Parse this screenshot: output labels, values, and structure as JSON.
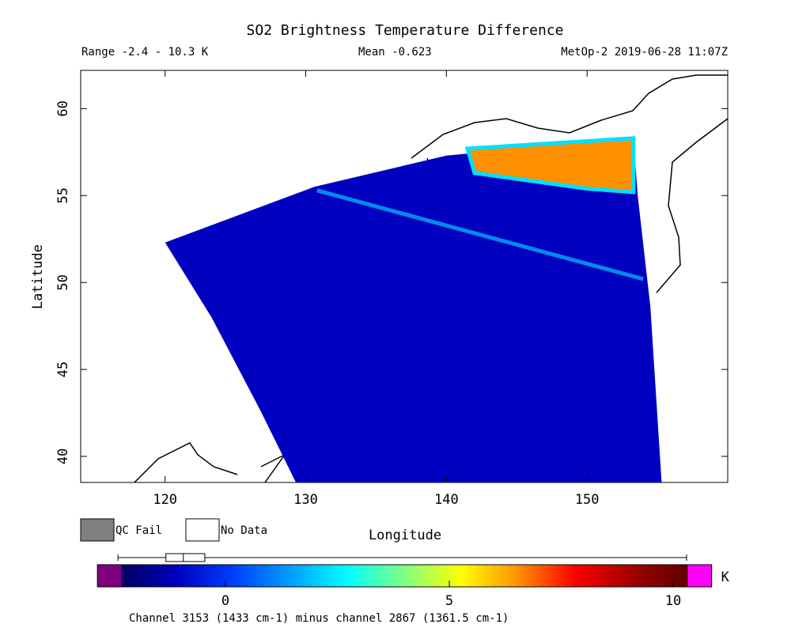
{
  "chart_data": {
    "type": "map",
    "title": "SO2 Brightness Temperature Difference",
    "range_text": "Range -2.4 - 10.3 K",
    "mean_text": "Mean -0.623",
    "satellite_text": "MetOp-2 2019-06-28 11:07Z",
    "mean": -0.623,
    "x_label": "Longitude",
    "y_label": "Latitude",
    "xlim": [
      114,
      160
    ],
    "ylim": [
      38.5,
      62.2
    ],
    "xticks": [
      120,
      130,
      140,
      150
    ],
    "yticks": [
      40,
      45,
      50,
      55,
      60
    ],
    "swath": {
      "lon": [
        120,
        123.3,
        126.8,
        129.3,
        155.3,
        154.5,
        153.6,
        153.3,
        140,
        130.6
      ],
      "lat": [
        52.3,
        48,
        42.6,
        38.5,
        38.5,
        48.6,
        55,
        58.3,
        57.3,
        55.5
      ]
    },
    "plume": {
      "value": 7,
      "lon": [
        141.5,
        153.3,
        153.3,
        150,
        142
      ],
      "lat": [
        57.7,
        58.3,
        55.2,
        55.4,
        56.3
      ]
    },
    "legend": [
      {
        "label": "QC Fail",
        "color": "#808080"
      },
      {
        "label": "No Data",
        "color": "#ffffff"
      }
    ],
    "colorbar": {
      "lim": [
        -2.33,
        10.33
      ],
      "ticks": [
        0,
        5,
        10
      ],
      "unit": "K",
      "under_color": "#800080",
      "over_color": "#ff00ff"
    },
    "distribution": {
      "min": -2.4,
      "q1": -1.33,
      "median": -0.94,
      "q3": -0.46,
      "max": 10.3
    },
    "footnote": "Channel 3153 (1433 cm-1) minus channel 2867 (1361.5 cm-1)"
  }
}
